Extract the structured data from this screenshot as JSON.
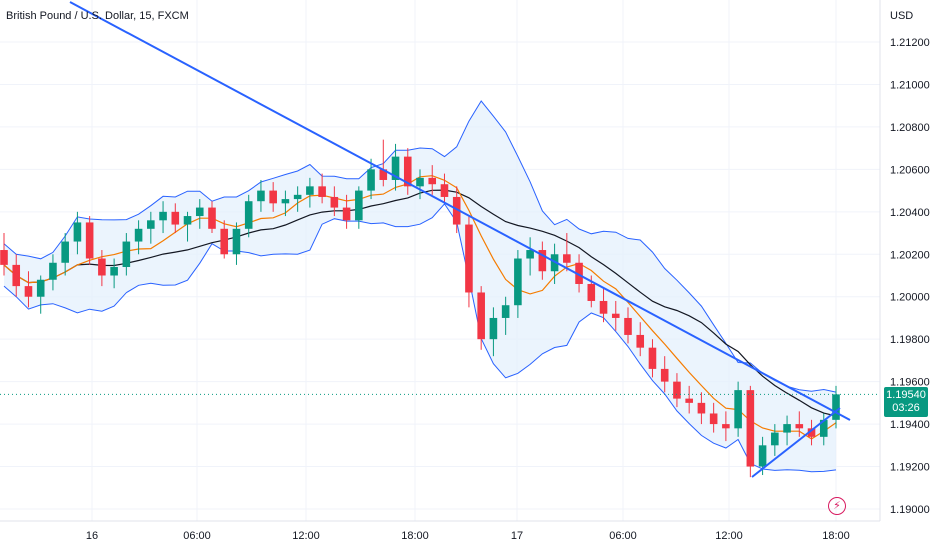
{
  "header": {
    "title": "British Pound / U.S. Dollar, 15, FXCM"
  },
  "axis": {
    "currency": "USD",
    "y_ticks": [
      "1.21200",
      "1.21000",
      "1.20800",
      "1.20600",
      "1.20400",
      "1.20200",
      "1.20000",
      "1.19800",
      "1.19600",
      "1.19400",
      "1.19200",
      "1.19000"
    ],
    "x_ticks": [
      "16",
      "06:00",
      "12:00",
      "18:00",
      "17",
      "06:00",
      "12:00",
      "18:00"
    ]
  },
  "price_label": {
    "price": "1.19540",
    "countdown": "03:26"
  },
  "colors": {
    "up": "#089981",
    "down": "#f23645",
    "bands": "#2962ff",
    "band_fill": "#e3effc",
    "ma_fast": "#f57c00",
    "ma_slow": "#131722",
    "trendline": "#2962ff",
    "last_price": "#089981"
  },
  "icons": {
    "alert": "lightning-icon"
  },
  "chart_data": {
    "type": "candlestick",
    "title": "British Pound / U.S. Dollar, 15, FXCM",
    "ylabel": "USD",
    "ylim": [
      1.1892,
      1.2135
    ],
    "last_price": 1.1954,
    "grid": true,
    "indicators": [
      "Bollinger Bands",
      "Moving Average",
      "Moving Average"
    ],
    "candles": [
      [
        1.2022,
        1.203,
        1.201,
        1.2015
      ],
      [
        1.2015,
        1.202,
        1.2,
        1.2005
      ],
      [
        1.2005,
        1.2012,
        1.1995,
        1.2
      ],
      [
        1.2,
        1.201,
        1.1992,
        1.2008
      ],
      [
        1.2008,
        1.202,
        1.2003,
        1.2016
      ],
      [
        1.2016,
        1.203,
        1.201,
        1.2026
      ],
      [
        1.2026,
        1.204,
        1.202,
        1.2035
      ],
      [
        1.2035,
        1.2038,
        1.2015,
        1.2018
      ],
      [
        1.2018,
        1.2022,
        1.2005,
        1.201
      ],
      [
        1.201,
        1.2018,
        1.2004,
        1.2014
      ],
      [
        1.2014,
        1.203,
        1.201,
        1.2026
      ],
      [
        1.2026,
        1.2036,
        1.202,
        1.2032
      ],
      [
        1.2032,
        1.204,
        1.2025,
        1.2036
      ],
      [
        1.2036,
        1.2045,
        1.203,
        1.204
      ],
      [
        1.204,
        1.2044,
        1.203,
        1.2034
      ],
      [
        1.2034,
        1.204,
        1.2026,
        1.2038
      ],
      [
        1.2038,
        1.2046,
        1.2032,
        1.2042
      ],
      [
        1.2042,
        1.2045,
        1.203,
        1.2032
      ],
      [
        1.2032,
        1.2036,
        1.2018,
        1.202
      ],
      [
        1.202,
        1.2035,
        1.2015,
        1.2032
      ],
      [
        1.2032,
        1.2048,
        1.2028,
        1.2045
      ],
      [
        1.2045,
        1.2055,
        1.204,
        1.205
      ],
      [
        1.205,
        1.2054,
        1.204,
        1.2044
      ],
      [
        1.2044,
        1.205,
        1.2038,
        1.2046
      ],
      [
        1.2046,
        1.2052,
        1.204,
        1.2048
      ],
      [
        1.2048,
        1.2056,
        1.2042,
        1.2052
      ],
      [
        1.2052,
        1.2058,
        1.2044,
        1.2047
      ],
      [
        1.2047,
        1.2052,
        1.2038,
        1.2042
      ],
      [
        1.2042,
        1.2048,
        1.2032,
        1.2036
      ],
      [
        1.2036,
        1.2052,
        1.2032,
        1.205
      ],
      [
        1.205,
        1.2065,
        1.2046,
        1.206
      ],
      [
        1.206,
        1.2074,
        1.2052,
        1.2055
      ],
      [
        1.2055,
        1.2072,
        1.205,
        1.2066
      ],
      [
        1.2066,
        1.207,
        1.2048,
        1.2052
      ],
      [
        1.2052,
        1.206,
        1.2046,
        1.2056
      ],
      [
        1.2056,
        1.2062,
        1.2048,
        1.2053
      ],
      [
        1.2053,
        1.2058,
        1.2044,
        1.2047
      ],
      [
        1.2047,
        1.2052,
        1.203,
        1.2034
      ],
      [
        1.2034,
        1.2038,
        1.1995,
        1.2002
      ],
      [
        1.2002,
        1.2005,
        1.1975,
        1.198
      ],
      [
        1.198,
        1.1995,
        1.1972,
        1.199
      ],
      [
        1.199,
        1.2,
        1.1982,
        1.1996
      ],
      [
        1.1996,
        1.2022,
        1.199,
        1.2018
      ],
      [
        1.2018,
        1.2028,
        1.201,
        1.2022
      ],
      [
        1.2022,
        1.2026,
        1.2008,
        1.2012
      ],
      [
        1.2012,
        1.2025,
        1.2006,
        1.202
      ],
      [
        1.202,
        1.203,
        1.2012,
        1.2016
      ],
      [
        1.2016,
        1.202,
        1.2002,
        1.2006
      ],
      [
        1.2006,
        1.201,
        1.1995,
        1.1998
      ],
      [
        1.1998,
        1.2004,
        1.1988,
        1.1992
      ],
      [
        1.1992,
        1.1998,
        1.1984,
        1.199
      ],
      [
        1.199,
        1.1995,
        1.1978,
        1.1982
      ],
      [
        1.1982,
        1.1988,
        1.1972,
        1.1976
      ],
      [
        1.1976,
        1.198,
        1.1962,
        1.1966
      ],
      [
        1.1966,
        1.1972,
        1.1955,
        1.196
      ],
      [
        1.196,
        1.1964,
        1.1948,
        1.1952
      ],
      [
        1.1952,
        1.1958,
        1.1945,
        1.195
      ],
      [
        1.195,
        1.1955,
        1.194,
        1.1945
      ],
      [
        1.1945,
        1.195,
        1.1936,
        1.194
      ],
      [
        1.194,
        1.1946,
        1.1932,
        1.1938
      ],
      [
        1.1938,
        1.196,
        1.1934,
        1.1956
      ],
      [
        1.1956,
        1.1958,
        1.1915,
        1.192
      ],
      [
        1.192,
        1.1934,
        1.1916,
        1.193
      ],
      [
        1.193,
        1.194,
        1.1925,
        1.1936
      ],
      [
        1.1936,
        1.1944,
        1.193,
        1.194
      ],
      [
        1.194,
        1.1946,
        1.1934,
        1.1938
      ],
      [
        1.1938,
        1.1942,
        1.193,
        1.1934
      ],
      [
        1.1934,
        1.1945,
        1.193,
        1.1942
      ],
      [
        1.1942,
        1.1958,
        1.1938,
        1.1954
      ]
    ]
  }
}
